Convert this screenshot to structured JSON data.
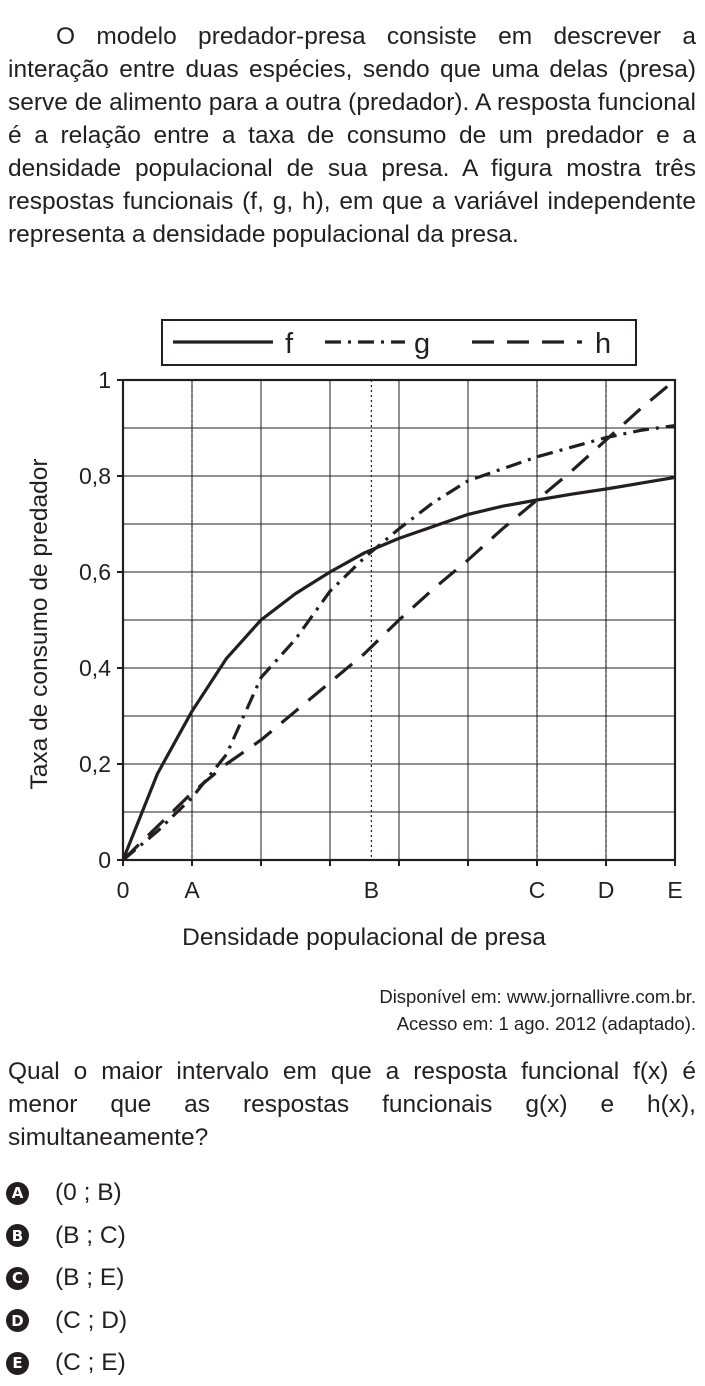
{
  "question": {
    "intro": "O modelo predador-presa consiste em descrever a interação entre duas espécies, sendo que uma delas (presa) serve de alimento para a outra (predador). A resposta funcional é a relação entre a taxa de consumo de um predador e a densidade populacional de sua presa. A figura mostra três respostas funcionais (f, g, h), em que a variável independente representa a densidade populacional da presa.",
    "source_line1": "Disponível em: www.jornallivre.com.br.",
    "source_line2": "Acesso em: 1 ago. 2012 (adaptado).",
    "prompt": "Qual o maior intervalo em que a resposta funcional f(x) é menor que as respostas funcionais g(x) e h(x), simultaneamente?",
    "options": [
      {
        "letter": "A",
        "text": "(0 ; B)"
      },
      {
        "letter": "B",
        "text": "(B ; C)"
      },
      {
        "letter": "C",
        "text": "(B ; E)"
      },
      {
        "letter": "D",
        "text": "(C ; D)"
      },
      {
        "letter": "E",
        "text": "(C ; E)"
      }
    ]
  },
  "chart_data": {
    "type": "line",
    "title": "",
    "xlabel": "Densidade populacional de presa",
    "ylabel": "Taxa de consumo de predador",
    "xlim": [
      0,
      8
    ],
    "ylim": [
      0,
      1
    ],
    "grid": true,
    "legend_position": "top",
    "x_ticks": [
      {
        "x": 0,
        "label": "0"
      },
      {
        "x": 1,
        "label": "A"
      },
      {
        "x": 3.6,
        "label": "B"
      },
      {
        "x": 6,
        "label": "C"
      },
      {
        "x": 7,
        "label": "D"
      },
      {
        "x": 8,
        "label": "E"
      }
    ],
    "y_ticks": [
      {
        "y": 0,
        "label": "0"
      },
      {
        "y": 0.2,
        "label": "0,2"
      },
      {
        "y": 0.4,
        "label": "0,4"
      },
      {
        "y": 0.6,
        "label": "0,6"
      },
      {
        "y": 0.8,
        "label": "0,8"
      },
      {
        "y": 1,
        "label": "1"
      }
    ],
    "series": [
      {
        "name": "f",
        "style": "solid",
        "x": [
          0,
          0.5,
          1,
          1.5,
          2,
          2.5,
          3,
          3.5,
          4,
          4.5,
          5,
          5.5,
          6,
          6.5,
          7,
          7.5,
          8
        ],
        "values": [
          0,
          0.18,
          0.31,
          0.42,
          0.5,
          0.555,
          0.6,
          0.64,
          0.67,
          0.695,
          0.72,
          0.737,
          0.75,
          0.762,
          0.773,
          0.785,
          0.797
        ]
      },
      {
        "name": "g",
        "style": "dash-dot",
        "x": [
          0,
          0.5,
          1,
          1.5,
          2,
          2.5,
          3,
          3.5,
          4,
          4.5,
          5,
          5.5,
          6,
          6.5,
          7,
          7.5,
          8
        ],
        "values": [
          0,
          0.06,
          0.13,
          0.22,
          0.38,
          0.46,
          0.56,
          0.63,
          0.69,
          0.745,
          0.79,
          0.815,
          0.84,
          0.86,
          0.88,
          0.895,
          0.905
        ]
      },
      {
        "name": "h",
        "style": "dashed",
        "x": [
          0,
          0.5,
          1,
          1.5,
          2,
          2.5,
          3,
          3.5,
          4,
          4.5,
          5,
          5.5,
          6,
          6.5,
          7,
          7.5,
          8
        ],
        "values": [
          0,
          0.07,
          0.14,
          0.2,
          0.25,
          0.31,
          0.37,
          0.43,
          0.5,
          0.565,
          0.625,
          0.69,
          0.75,
          0.81,
          0.875,
          0.94,
          1
        ]
      }
    ]
  }
}
